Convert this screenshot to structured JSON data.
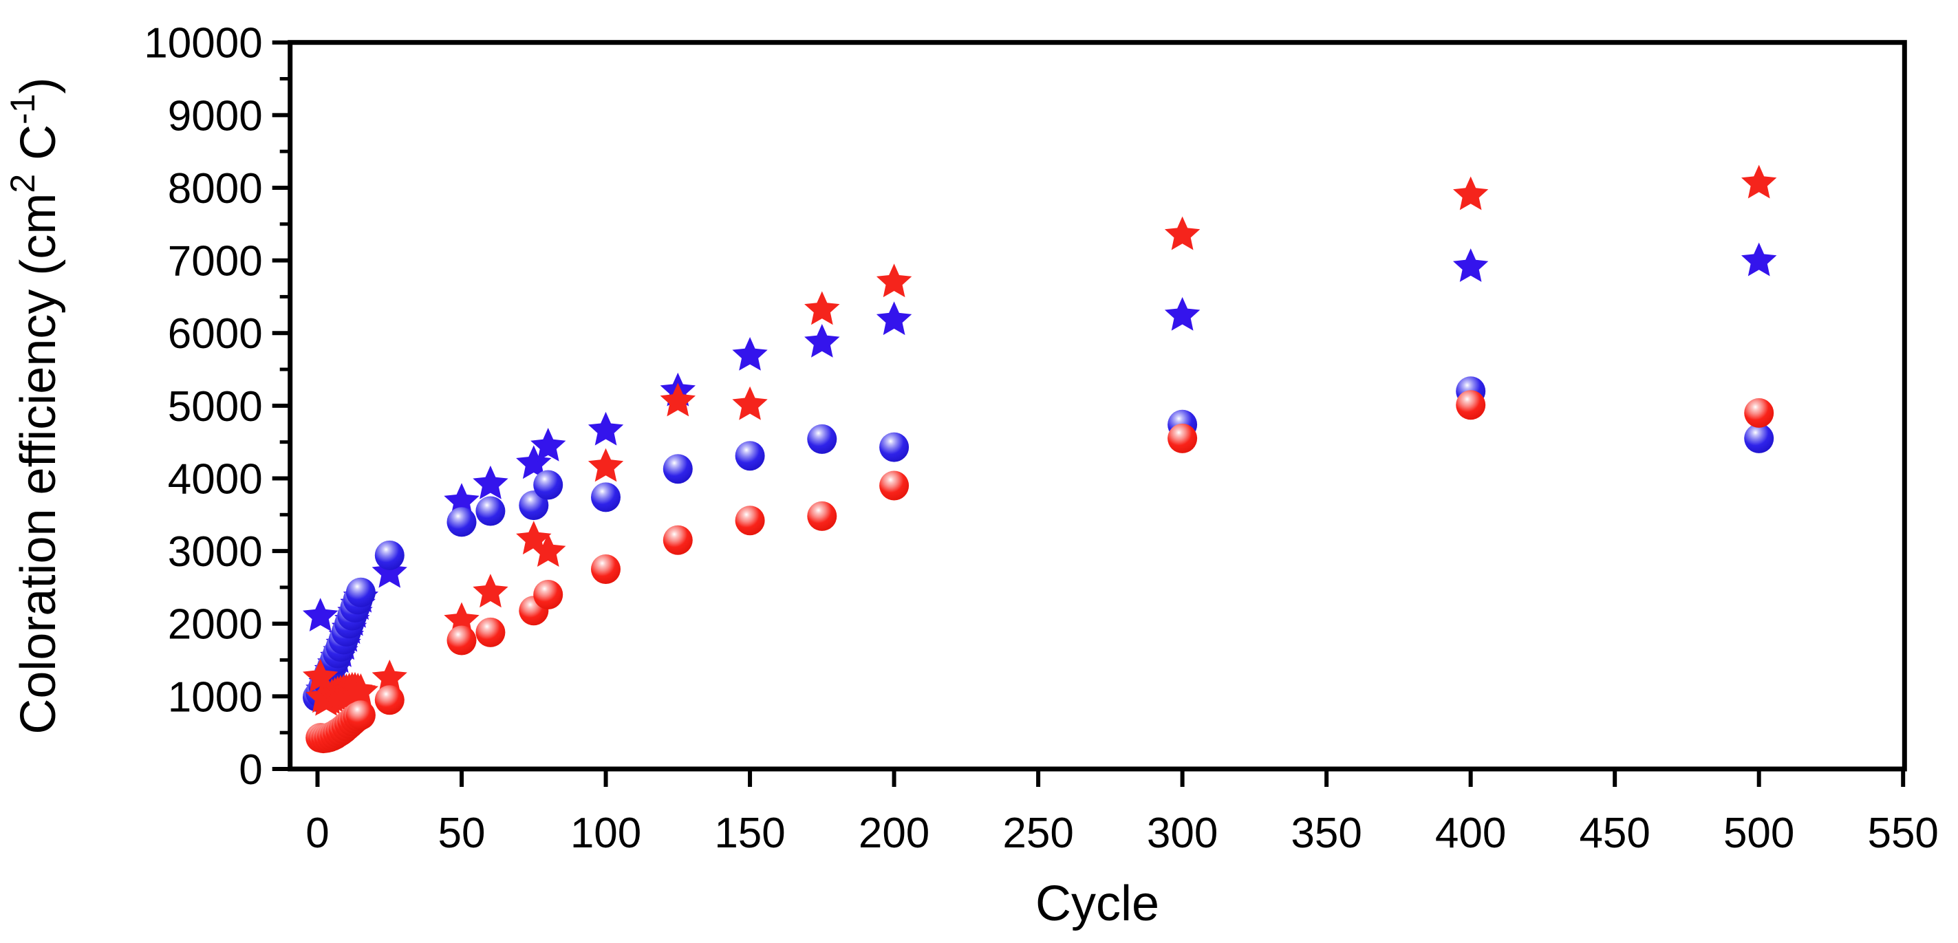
{
  "chart_data": {
    "type": "scatter",
    "title": "",
    "xlabel": "Cycle",
    "ylabel": "Coloration efficiency (cm2 C-1)",
    "ylabel_rich": [
      {
        "t": "Coloration efficiency (cm",
        "sup": false
      },
      {
        "t": "2",
        "sup": true
      },
      {
        "t": " C",
        "sup": false
      },
      {
        "t": "-1",
        "sup": true
      },
      {
        "t": ")",
        "sup": false
      }
    ],
    "xlim": [
      -9.5,
      550.5
    ],
    "ylim": [
      0,
      10000
    ],
    "x_ticks": [
      0,
      50,
      100,
      150,
      200,
      250,
      300,
      350,
      400,
      450,
      500,
      550
    ],
    "y_ticks": [
      0,
      1000,
      2000,
      3000,
      4000,
      5000,
      6000,
      7000,
      8000,
      9000,
      10000
    ],
    "y_minor_ticks": [
      500,
      1500,
      2500,
      3500,
      4500,
      5500,
      6500,
      7500,
      8500,
      9500
    ],
    "grid": false,
    "legend": null,
    "background": "#ffffff",
    "axis_color": "#000000",
    "series": [
      {
        "name": "blue-stars",
        "marker": "star",
        "color": "#3414ec",
        "points": [
          [
            1,
            2100
          ],
          [
            2,
            1080
          ],
          [
            3,
            1170
          ],
          [
            4,
            1260
          ],
          [
            5,
            1350
          ],
          [
            6,
            1440
          ],
          [
            7,
            1530
          ],
          [
            8,
            1610
          ],
          [
            9,
            1710
          ],
          [
            10,
            1820
          ],
          [
            11,
            1930
          ],
          [
            12,
            2040
          ],
          [
            13,
            2150
          ],
          [
            14,
            2260
          ],
          [
            15,
            2360
          ],
          [
            25,
            2700
          ],
          [
            50,
            3680
          ],
          [
            60,
            3920
          ],
          [
            75,
            4200
          ],
          [
            80,
            4440
          ],
          [
            100,
            4660
          ],
          [
            125,
            5200
          ],
          [
            150,
            5690
          ],
          [
            175,
            5870
          ],
          [
            200,
            6180
          ],
          [
            300,
            6240
          ],
          [
            400,
            6910
          ],
          [
            500,
            6990
          ]
        ]
      },
      {
        "name": "blue-spheres",
        "marker": "sphere",
        "color": "#2b1fe8",
        "points": [
          [
            0,
            990
          ],
          [
            1,
            1050
          ],
          [
            2,
            1140
          ],
          [
            3,
            1230
          ],
          [
            4,
            1320
          ],
          [
            5,
            1410
          ],
          [
            6,
            1500
          ],
          [
            7,
            1590
          ],
          [
            8,
            1680
          ],
          [
            9,
            1780
          ],
          [
            10,
            1890
          ],
          [
            11,
            2000
          ],
          [
            12,
            2110
          ],
          [
            13,
            2220
          ],
          [
            14,
            2330
          ],
          [
            15,
            2430
          ],
          [
            25,
            2940
          ],
          [
            50,
            3400
          ],
          [
            60,
            3550
          ],
          [
            75,
            3630
          ],
          [
            80,
            3910
          ],
          [
            100,
            3740
          ],
          [
            125,
            4130
          ],
          [
            150,
            4310
          ],
          [
            175,
            4540
          ],
          [
            200,
            4430
          ],
          [
            300,
            4740
          ],
          [
            400,
            5200
          ],
          [
            500,
            4550
          ]
        ]
      },
      {
        "name": "red-stars",
        "marker": "star",
        "color": "#f5241c",
        "points": [
          [
            1,
            1260
          ],
          [
            2,
            980
          ],
          [
            3,
            940
          ],
          [
            4,
            960
          ],
          [
            5,
            990
          ],
          [
            6,
            1010
          ],
          [
            7,
            1030
          ],
          [
            8,
            1040
          ],
          [
            9,
            1050
          ],
          [
            10,
            1060
          ],
          [
            11,
            1070
          ],
          [
            12,
            1080
          ],
          [
            13,
            1080
          ],
          [
            14,
            1070
          ],
          [
            15,
            1060
          ],
          [
            25,
            1250
          ],
          [
            50,
            2040
          ],
          [
            60,
            2430
          ],
          [
            75,
            3160
          ],
          [
            80,
            2990
          ],
          [
            100,
            4160
          ],
          [
            125,
            5060
          ],
          [
            150,
            5010
          ],
          [
            175,
            6320
          ],
          [
            200,
            6700
          ],
          [
            300,
            7350
          ],
          [
            400,
            7900
          ],
          [
            500,
            8060
          ]
        ]
      },
      {
        "name": "red-spheres",
        "marker": "sphere",
        "color": "#f9231a",
        "points": [
          [
            1,
            430
          ],
          [
            2,
            420
          ],
          [
            3,
            425
          ],
          [
            4,
            435
          ],
          [
            5,
            450
          ],
          [
            6,
            470
          ],
          [
            7,
            495
          ],
          [
            8,
            520
          ],
          [
            9,
            550
          ],
          [
            10,
            585
          ],
          [
            11,
            620
          ],
          [
            12,
            655
          ],
          [
            13,
            690
          ],
          [
            14,
            720
          ],
          [
            15,
            740
          ],
          [
            25,
            950
          ],
          [
            50,
            1770
          ],
          [
            60,
            1880
          ],
          [
            75,
            2180
          ],
          [
            80,
            2400
          ],
          [
            100,
            2750
          ],
          [
            125,
            3150
          ],
          [
            150,
            3420
          ],
          [
            175,
            3480
          ],
          [
            200,
            3900
          ],
          [
            300,
            4550
          ],
          [
            400,
            5010
          ],
          [
            500,
            4900
          ]
        ]
      }
    ]
  }
}
